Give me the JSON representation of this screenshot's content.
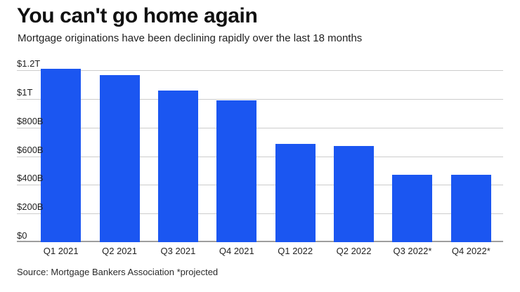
{
  "header": {
    "title": "You can't go home again",
    "subtitle": "Mortgage originations have been declining rapidly over the last 18 months"
  },
  "source_note": "Source: Mortgage Bankers Association *projected",
  "colors": {
    "bar": "#1b56f1",
    "gridline": "#cccccc",
    "baseline": "#9e9e9e"
  },
  "chart_data": {
    "type": "bar",
    "title": "You can't go home again",
    "subtitle": "Mortgage originations have been declining rapidly over the last 18 months",
    "unit": "USD billions",
    "categories": [
      "Q1 2021",
      "Q2 2021",
      "Q3 2021",
      "Q4 2021",
      "Q1 2022",
      "Q2 2022",
      "Q3 2022*",
      "Q4 2022*"
    ],
    "values_billions": [
      1210,
      1165,
      1060,
      990,
      685,
      672,
      472,
      468
    ],
    "ylim": [
      0,
      1200
    ],
    "yticks": [
      {
        "label": "$1.2T",
        "value": 1200
      },
      {
        "label": "$1T",
        "value": 1000
      },
      {
        "label": "$800B",
        "value": 800
      },
      {
        "label": "$600B",
        "value": 600
      },
      {
        "label": "$400B",
        "value": 400
      },
      {
        "label": "$200B",
        "value": 200
      },
      {
        "label": "$0",
        "value": 0
      }
    ],
    "grid": "horizontal",
    "legend": "none",
    "annotation": "*projected",
    "source": "Source: Mortgage Bankers Association *projected"
  }
}
